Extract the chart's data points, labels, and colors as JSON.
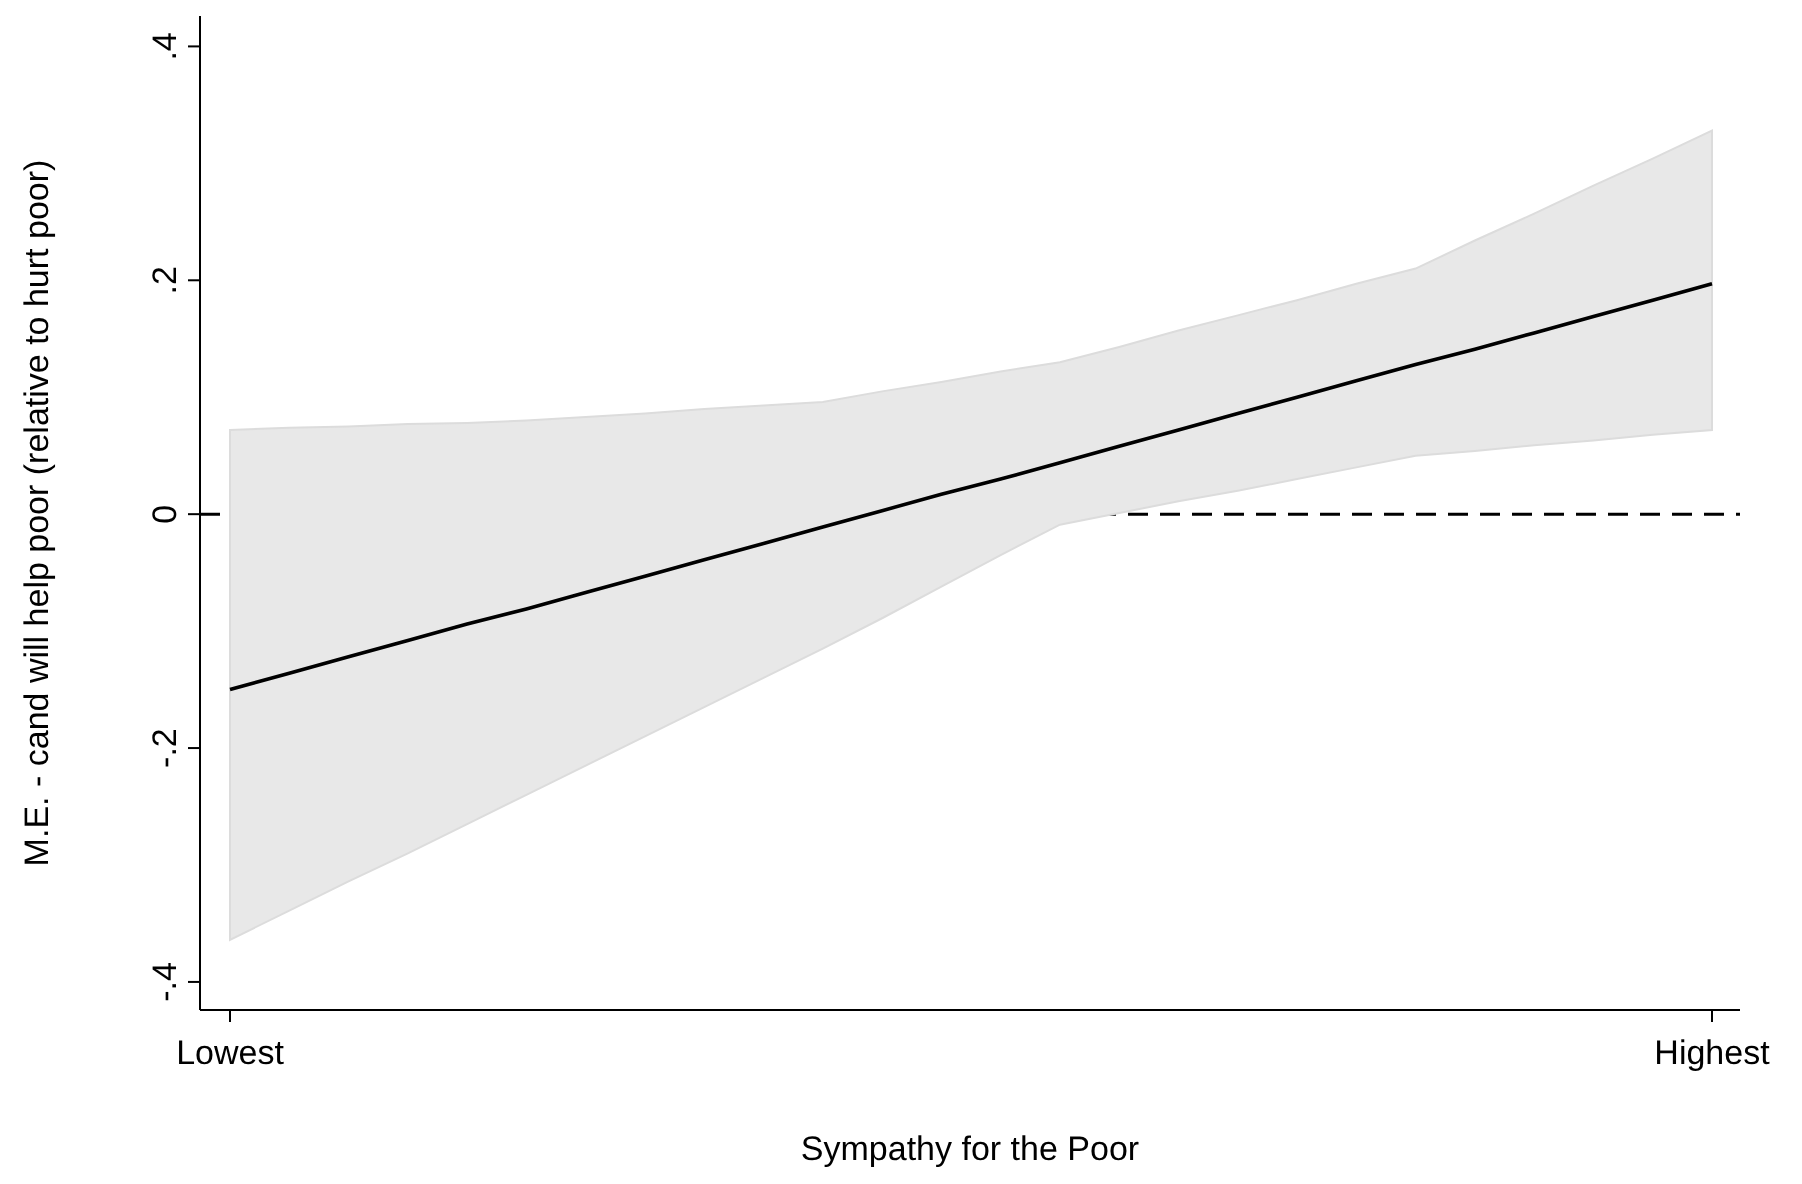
{
  "chart_data": {
    "type": "line",
    "xlabel": "Sympathy for the Poor",
    "ylabel": "M.E. - cand will help poor (relative to hurt poor)",
    "categories": [
      "Lowest",
      null,
      null,
      null,
      null,
      null,
      null,
      null,
      null,
      null,
      null,
      null,
      null,
      null,
      null,
      null,
      null,
      null,
      null,
      null,
      null,
      null,
      null,
      null,
      null,
      "Highest"
    ],
    "ylim": [
      -0.424,
      0.426
    ],
    "yticks": [
      {
        "value": -0.4,
        "label": "-.4"
      },
      {
        "value": -0.2,
        "label": "-.2"
      },
      0,
      {
        "value": 0.2,
        "label": ".2"
      },
      {
        "value": 0.4,
        "label": ".4"
      }
    ],
    "series": [
      {
        "color": "#000000",
        "values": [
          -0.15,
          -0.136,
          -0.122,
          -0.108,
          -0.094,
          -0.081,
          -0.067,
          -0.053,
          -0.039,
          -0.025,
          -0.011,
          0.003,
          0.017,
          0.03,
          0.044,
          0.058,
          0.072,
          0.086,
          0.1,
          0.114,
          0.128,
          0.141,
          0.155,
          0.169,
          0.183,
          0.197
        ],
        "lower": [
          -0.364,
          -0.339,
          -0.314,
          -0.29,
          -0.265,
          -0.24,
          -0.215,
          -0.19,
          -0.165,
          -0.14,
          -0.115,
          -0.089,
          -0.062,
          -0.035,
          -0.009,
          0.001,
          0.011,
          0.02,
          0.03,
          0.04,
          0.05,
          0.054,
          0.059,
          0.063,
          0.068,
          0.072
        ],
        "upper": [
          0.072,
          0.074,
          0.075,
          0.077,
          0.078,
          0.08,
          0.083,
          0.086,
          0.09,
          0.093,
          0.096,
          0.105,
          0.113,
          0.122,
          0.13,
          0.143,
          0.157,
          0.17,
          0.183,
          0.197,
          0.21,
          0.234,
          0.257,
          0.281,
          0.304,
          0.328
        ]
      }
    ],
    "ref_lines": [
      {
        "axis": "y",
        "value": 0,
        "color": "#000000",
        "line_style": "dashed"
      }
    ],
    "grid": false,
    "marker": "none",
    "line_style": "solid"
  }
}
